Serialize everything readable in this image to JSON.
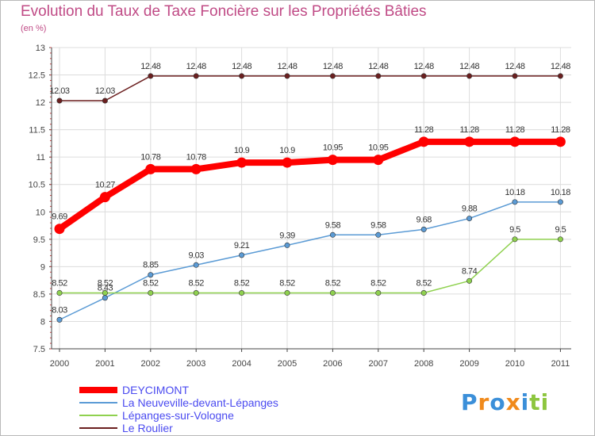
{
  "chart_data": {
    "type": "line",
    "title": "Evolution du Taux de Taxe Foncière sur les Propriétés Bâties",
    "unit_label": "(en %)",
    "categories": [
      "2000",
      "2001",
      "2002",
      "2003",
      "2004",
      "2005",
      "2006",
      "2007",
      "2008",
      "2009",
      "2010",
      "2011"
    ],
    "ylim": [
      7.5,
      13
    ],
    "yticks": [
      "7.5",
      "8",
      "8.5",
      "9",
      "9.5",
      "10",
      "10.5",
      "11",
      "11.5",
      "12",
      "12.5",
      "13"
    ],
    "grid": true,
    "legend_position": "bottom-left",
    "series": [
      {
        "name": "Le Roulier",
        "color": "#6b1f1f",
        "values": [
          12.03,
          12.03,
          12.48,
          12.48,
          12.48,
          12.48,
          12.48,
          12.48,
          12.48,
          12.48,
          12.48,
          12.48
        ],
        "labels": [
          "12.03",
          "12.03",
          "12.48",
          "12.48",
          "12.48",
          "12.48",
          "12.48",
          "12.48",
          "12.48",
          "12.48",
          "12.48",
          "12.48"
        ]
      },
      {
        "name": "DEYCIMONT",
        "color": "#ff0000",
        "values": [
          9.69,
          10.27,
          10.78,
          10.78,
          10.9,
          10.9,
          10.95,
          10.95,
          11.28,
          11.28,
          11.28,
          11.28
        ],
        "labels": [
          "9.69",
          "10.27",
          "10.78",
          "10.78",
          "10.9",
          "10.9",
          "10.95",
          "10.95",
          "11.28",
          "11.28",
          "11.28",
          "11.28"
        ]
      },
      {
        "name": "La Neuveville-devant-Lépanges",
        "color": "#5b9bd5",
        "values": [
          8.03,
          8.43,
          8.85,
          9.03,
          9.21,
          9.39,
          9.58,
          9.58,
          9.68,
          9.88,
          10.18,
          10.18
        ],
        "labels": [
          "8.03",
          "8.43",
          "8.85",
          "9.03",
          "9.21",
          "9.39",
          "9.58",
          "9.58",
          "9.68",
          "9.88",
          "10.18",
          "10.18"
        ]
      },
      {
        "name": "Lépanges-sur-Vologne",
        "color": "#8fd14f",
        "values": [
          8.52,
          8.52,
          8.52,
          8.52,
          8.52,
          8.52,
          8.52,
          8.52,
          8.52,
          8.74,
          9.5,
          9.5
        ],
        "labels": [
          "8.52",
          "8.52",
          "8.52",
          "8.52",
          "8.52",
          "8.52",
          "8.52",
          "8.52",
          "8.52",
          "8.74",
          "9.5",
          "9.5"
        ]
      }
    ]
  },
  "legend": {
    "items": [
      {
        "label": "DEYCIMONT",
        "color": "#ff0000"
      },
      {
        "label": "La Neuveville-devant-Lépanges",
        "color": "#5b9bd5"
      },
      {
        "label": "Lépanges-sur-Vologne",
        "color": "#8fd14f"
      },
      {
        "label": "Le Roulier",
        "color": "#6b1f1f"
      }
    ]
  },
  "logo": {
    "text": "Proxiti"
  }
}
